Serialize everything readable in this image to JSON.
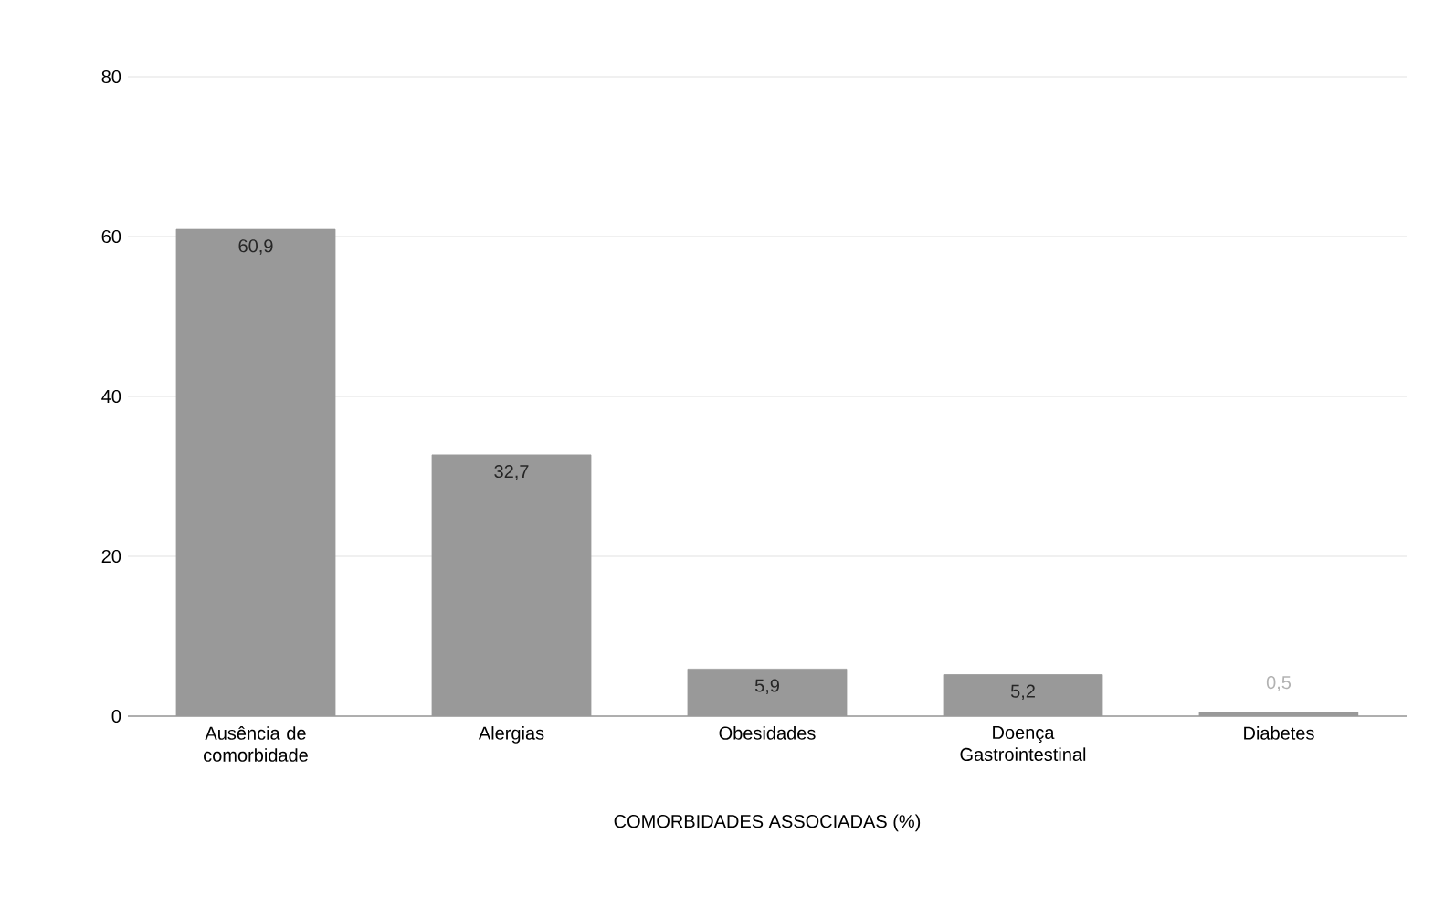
{
  "chart_data": {
    "type": "bar",
    "xlabel": "COMORBIDADES ASSOCIADAS (%)",
    "categories": [
      "Ausência de comorbidade",
      "Alergias",
      "Obesidades",
      "Doença Gastrointestinal",
      "Diabetes"
    ],
    "values": [
      60.9,
      32.7,
      5.9,
      5.2,
      0.5
    ],
    "value_labels": [
      "60,9",
      "32,7",
      "5,9",
      "5,2",
      "0,5"
    ],
    "color": "#999999",
    "ylim": [
      0,
      80
    ],
    "yticks": [
      0,
      20,
      40,
      60,
      80
    ],
    "grid": "y"
  }
}
